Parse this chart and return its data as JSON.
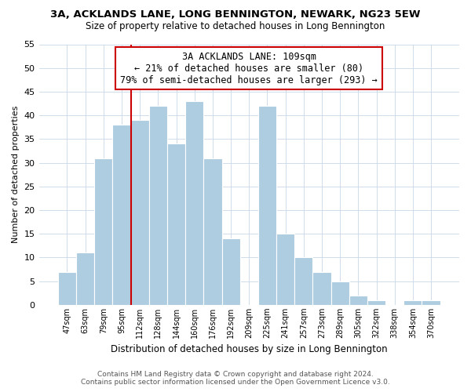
{
  "title": "3A, ACKLANDS LANE, LONG BENNINGTON, NEWARK, NG23 5EW",
  "subtitle": "Size of property relative to detached houses in Long Bennington",
  "xlabel": "Distribution of detached houses by size in Long Bennington",
  "ylabel": "Number of detached properties",
  "footer_line1": "Contains HM Land Registry data © Crown copyright and database right 2024.",
  "footer_line2": "Contains public sector information licensed under the Open Government Licence v3.0.",
  "bar_labels": [
    "47sqm",
    "63sqm",
    "79sqm",
    "95sqm",
    "112sqm",
    "128sqm",
    "144sqm",
    "160sqm",
    "176sqm",
    "192sqm",
    "209sqm",
    "225sqm",
    "241sqm",
    "257sqm",
    "273sqm",
    "289sqm",
    "305sqm",
    "322sqm",
    "338sqm",
    "354sqm",
    "370sqm"
  ],
  "bar_values": [
    7,
    11,
    31,
    38,
    39,
    42,
    34,
    43,
    31,
    14,
    0,
    42,
    15,
    10,
    7,
    5,
    2,
    1,
    0,
    1,
    1
  ],
  "bar_color": "#aecde1",
  "bar_edge_color": "#aecde1",
  "vline_color": "#cc0000",
  "annotation_line1": "3A ACKLANDS LANE: 109sqm",
  "annotation_line2": "← 21% of detached houses are smaller (80)",
  "annotation_line3": "79% of semi-detached houses are larger (293) →",
  "annotation_box_color": "#ffffff",
  "annotation_box_edgecolor": "#cc0000",
  "ylim": [
    0,
    55
  ],
  "yticks": [
    0,
    5,
    10,
    15,
    20,
    25,
    30,
    35,
    40,
    45,
    50,
    55
  ],
  "bg_color": "#ffffff",
  "grid_color": "#c8d8e8"
}
